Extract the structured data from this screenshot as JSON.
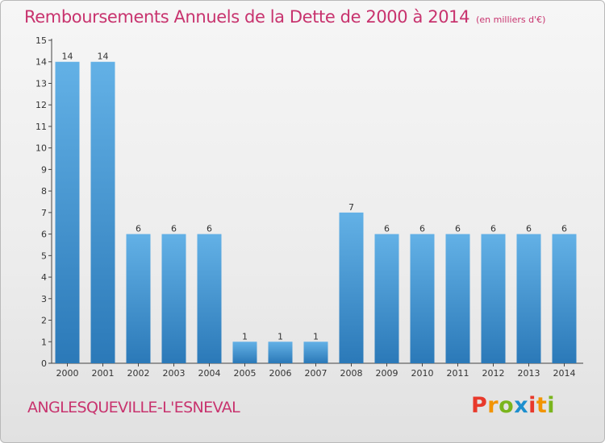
{
  "title": "Remboursements Annuels de la Dette de 2000 à 2014",
  "subtitle": "(en milliers d'€)",
  "commune": "ANGLESQUEVILLE-L'ESNEVAL",
  "logo": {
    "letters": [
      "P",
      "r",
      "o",
      "x",
      "i",
      "t",
      "i"
    ],
    "colors": [
      "#e8392b",
      "#f29400",
      "#7ab51d",
      "#1d8fce",
      "#e8392b",
      "#f29400",
      "#7ab51d"
    ]
  },
  "colors": {
    "bar_top": "#63b1e6",
    "bar_bottom": "#2b79b8",
    "title": "#c8336e"
  },
  "chart_data": {
    "type": "bar",
    "title": "Remboursements Annuels de la Dette de 2000 à 2014",
    "subtitle": "(en milliers d'€)",
    "categories": [
      "2000",
      "2001",
      "2002",
      "2003",
      "2004",
      "2005",
      "2006",
      "2007",
      "2008",
      "2009",
      "2010",
      "2011",
      "2012",
      "2013",
      "2014"
    ],
    "values": [
      14,
      14,
      6,
      6,
      6,
      1,
      1,
      1,
      7,
      6,
      6,
      6,
      6,
      6,
      6
    ],
    "data_labels": [
      "14",
      "14",
      "6",
      "6",
      "6",
      "1",
      "1",
      "1",
      "7",
      "6",
      "6",
      "6",
      "6",
      "6",
      "6"
    ],
    "y_ticks": [
      "0",
      "1",
      "2",
      "3",
      "4",
      "5",
      "6",
      "7",
      "8",
      "9",
      "10",
      "11",
      "12",
      "13",
      "14",
      "15"
    ],
    "ylim": [
      0,
      15
    ],
    "grid": false,
    "legend": "none"
  }
}
